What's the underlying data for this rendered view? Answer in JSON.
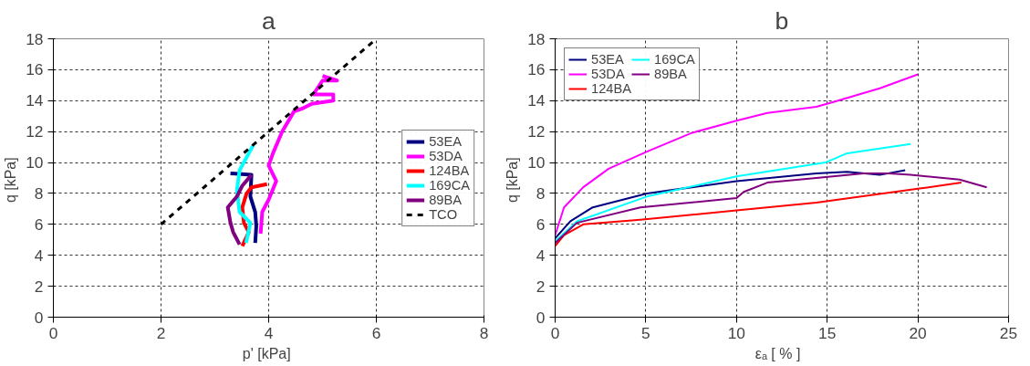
{
  "chart_data": [
    {
      "type": "line",
      "title": "a",
      "xlabel": "p'  [kPa]",
      "ylabel": "q  [kPa]",
      "xlim": [
        0,
        8
      ],
      "xticks": [
        0,
        2,
        4,
        6,
        8
      ],
      "ylim": [
        0,
        18
      ],
      "yticks": [
        0,
        2,
        4,
        6,
        8,
        10,
        12,
        14,
        16,
        18
      ],
      "grid": true,
      "legend": "right",
      "marker": "none",
      "series": [
        {
          "name": "53EA",
          "color": "#000080",
          "x": [
            3.29,
            3.68,
            3.66,
            3.75,
            3.77,
            3.75
          ],
          "values": [
            9.3,
            9.2,
            7.8,
            6.8,
            5.9,
            4.8
          ]
        },
        {
          "name": "53DA",
          "color": "#ff00ff",
          "x": [
            3.85,
            3.88,
            4.0,
            4.14,
            4.0,
            4.08,
            4.25,
            4.47,
            4.63,
            4.8,
            5.2,
            5.2,
            4.83,
            5.0,
            5.27,
            5.0
          ],
          "values": [
            5.4,
            6.8,
            7.6,
            8.8,
            9.8,
            10.6,
            12.0,
            13.3,
            13.5,
            13.8,
            14.0,
            14.4,
            14.4,
            15.3,
            15.3,
            15.6
          ]
        },
        {
          "name": "124BA",
          "color": "#ff0000",
          "x": [
            3.51,
            3.63,
            3.54,
            3.51,
            3.59,
            3.68,
            3.97
          ],
          "values": [
            4.6,
            5.5,
            6.1,
            7.1,
            8.0,
            8.4,
            8.6
          ]
        },
        {
          "name": "169CA",
          "color": "#00ffff",
          "x": [
            3.58,
            3.66,
            3.46,
            3.41,
            3.46,
            3.71
          ],
          "values": [
            4.8,
            6.1,
            6.8,
            8.2,
            9.5,
            11.1
          ]
        },
        {
          "name": "89BA",
          "color": "#800080",
          "x": [
            3.46,
            3.34,
            3.29,
            3.24,
            3.41,
            3.51,
            3.68
          ],
          "values": [
            4.7,
            5.5,
            6.1,
            7.1,
            7.8,
            8.5,
            9.2
          ]
        },
        {
          "name": "TCO",
          "color": "#000000",
          "line_style": "dashed",
          "x": [
            2,
            6
          ],
          "values": [
            6,
            18
          ]
        }
      ]
    },
    {
      "type": "line",
      "title": "b",
      "xlabel": "εₐ   [ % ]",
      "ylabel": "q  [kPa]",
      "xlim": [
        0,
        25
      ],
      "xticks": [
        0,
        5,
        10,
        15,
        20,
        25
      ],
      "ylim": [
        0,
        18
      ],
      "yticks": [
        0,
        2,
        4,
        6,
        8,
        10,
        12,
        14,
        16,
        18
      ],
      "grid": true,
      "legend": "top left",
      "marker": "none",
      "series": [
        {
          "name": "53EA",
          "color": "#000080",
          "x": [
            0,
            0.84,
            2.07,
            5.06,
            10,
            14.4,
            16.1,
            17.9,
            19.3
          ],
          "values": [
            5.1,
            6.2,
            7.1,
            8.0,
            8.8,
            9.3,
            9.4,
            9.2,
            9.5
          ]
        },
        {
          "name": "53DA",
          "color": "#ff00ff",
          "x": [
            0,
            0.49,
            1.55,
            2.95,
            5.06,
            7.5,
            10,
            11.7,
            14.4,
            15.3,
            17.9,
            20
          ],
          "values": [
            5.3,
            7.1,
            8.4,
            9.6,
            10.7,
            11.9,
            12.7,
            13.2,
            13.6,
            13.9,
            14.8,
            15.7
          ]
        },
        {
          "name": "124BA",
          "color": "#ff0000",
          "x": [
            0,
            0.49,
            1.55,
            4.7,
            10,
            14.4,
            20,
            22.4
          ],
          "values": [
            4.6,
            5.3,
            6.0,
            6.3,
            6.9,
            7.4,
            8.3,
            8.7
          ]
        },
        {
          "name": "169CA",
          "color": "#00ffff",
          "x": [
            0,
            1.2,
            5.06,
            10,
            14.9,
            16.1,
            19.6
          ],
          "values": [
            4.9,
            6.2,
            7.8,
            9.1,
            10.0,
            10.6,
            11.2
          ]
        },
        {
          "name": "89BA",
          "color": "#800080",
          "x": [
            0,
            1.2,
            4.7,
            10,
            10.4,
            11.7,
            14.4,
            17,
            18.4,
            19.6,
            22.3,
            23.8
          ],
          "values": [
            4.8,
            6.1,
            7.1,
            7.7,
            8.1,
            8.7,
            9.0,
            9.3,
            9.3,
            9.2,
            8.9,
            8.4
          ]
        }
      ]
    }
  ]
}
